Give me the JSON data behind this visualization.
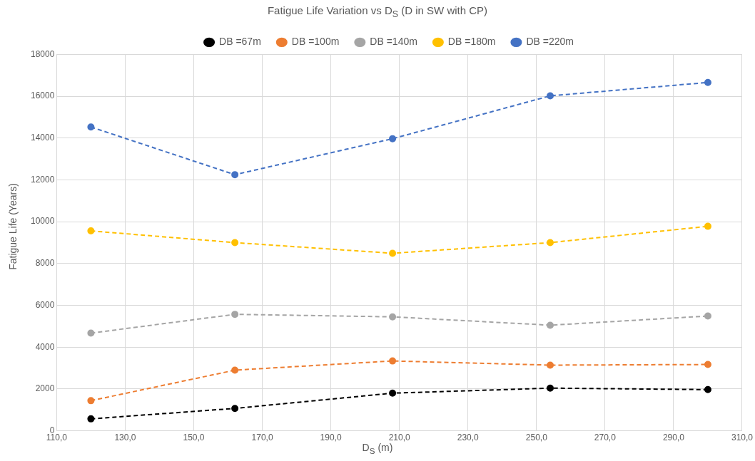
{
  "chart_data": {
    "type": "line",
    "title": "Fatigue Life Variation vs D$_{S}$ (D in SW with CP)",
    "xlabel": "D$_{S}$ (m)",
    "ylabel": "Fatigue Life (Years)",
    "x": [
      120,
      162,
      208,
      254,
      300
    ],
    "series": [
      {
        "name": "DB =67m",
        "color": "#000000",
        "values": [
          570,
          1070,
          1800,
          2040,
          1970
        ]
      },
      {
        "name": "DB =100m",
        "color": "#ed7d31",
        "values": [
          1440,
          2900,
          3340,
          3140,
          3170
        ]
      },
      {
        "name": "DB =140m",
        "color": "#a5a5a5",
        "values": [
          4670,
          5570,
          5450,
          5050,
          5490
        ]
      },
      {
        "name": "DB =180m",
        "color": "#ffc000",
        "values": [
          9560,
          9000,
          8490,
          9000,
          9780
        ]
      },
      {
        "name": "DB =220m",
        "color": "#4472c4",
        "values": [
          14530,
          12250,
          13970,
          16020,
          16660
        ]
      }
    ],
    "xlim": [
      110,
      310
    ],
    "xticks": [
      {
        "value": 110,
        "label": "110,0"
      },
      {
        "value": 130,
        "label": "130,0"
      },
      {
        "value": 150,
        "label": "150,0"
      },
      {
        "value": 170,
        "label": "170,0"
      },
      {
        "value": 190,
        "label": "190,0"
      },
      {
        "value": 210,
        "label": "210,0"
      },
      {
        "value": 230,
        "label": "230,0"
      },
      {
        "value": 250,
        "label": "250,0"
      },
      {
        "value": 270,
        "label": "270,0"
      },
      {
        "value": 290,
        "label": "290,0"
      },
      {
        "value": 310,
        "label": "310,0"
      }
    ],
    "ylim": [
      0,
      18000
    ],
    "yticks": [
      0,
      2000,
      4000,
      6000,
      8000,
      10000,
      12000,
      14000,
      16000,
      18000
    ],
    "grid": true,
    "legend": "top",
    "marker": "circle",
    "line_style": "dashed"
  }
}
